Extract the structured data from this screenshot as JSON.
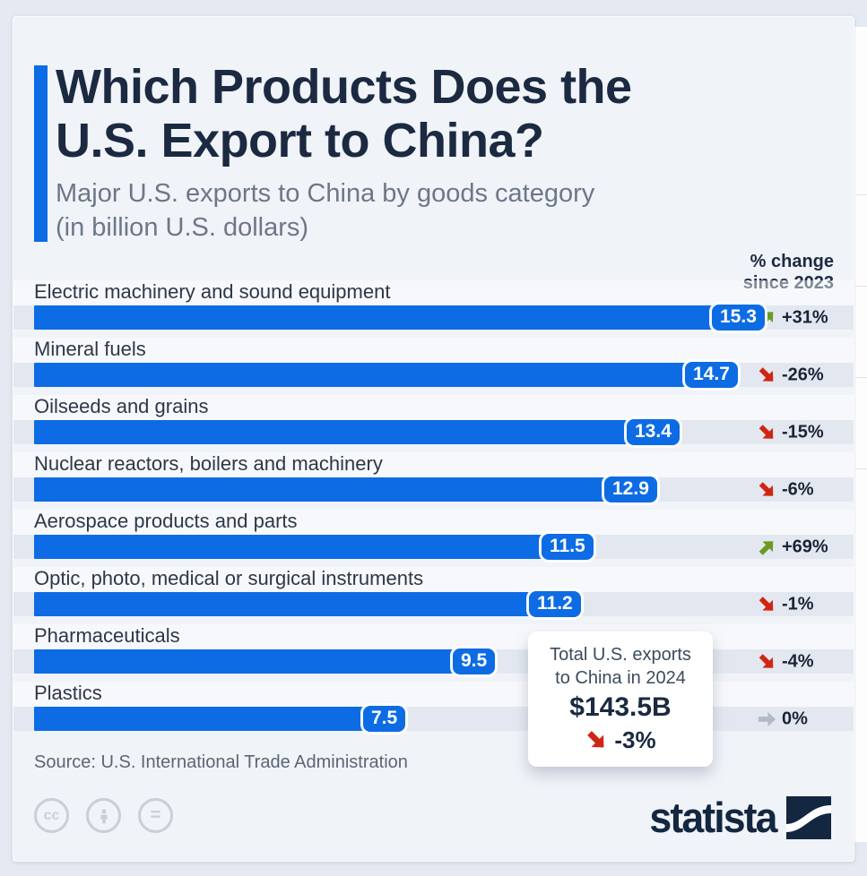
{
  "header": {
    "title_line1": "Which Products Does the",
    "title_line2": "U.S. Export to China?",
    "subtitle_line1": "Major U.S. exports to China by goods category",
    "subtitle_line2": "(in billion U.S. dollars)",
    "change_header_line1": "% change",
    "change_header_line2": "since 2023"
  },
  "chart_data": {
    "type": "bar",
    "orientation": "horizontal",
    "title": "Which Products Does the U.S. Export to China?",
    "subtitle": "Major U.S. exports to China by goods category (in billion U.S. dollars)",
    "unit": "billion U.S. dollars",
    "xlim": [
      0,
      15.3
    ],
    "categories": [
      "Electric machinery and sound equipment",
      "Mineral fuels",
      "Oilseeds and grains",
      "Nuclear reactors, boilers and machinery",
      "Aerospace products and parts",
      "Optic, photo, medical or surgical instruments",
      "Pharmaceuticals",
      "Plastics"
    ],
    "values": [
      15.3,
      14.7,
      13.4,
      12.9,
      11.5,
      11.2,
      9.5,
      7.5
    ],
    "rows": [
      {
        "label": "Electric machinery and sound equipment",
        "value": 15.3,
        "value_label": "15.3",
        "change": "+31%",
        "direction": "up"
      },
      {
        "label": "Mineral fuels",
        "value": 14.7,
        "value_label": "14.7",
        "change": "-26%",
        "direction": "down"
      },
      {
        "label": "Oilseeds and grains",
        "value": 13.4,
        "value_label": "13.4",
        "change": "-15%",
        "direction": "down"
      },
      {
        "label": "Nuclear reactors, boilers and machinery",
        "value": 12.9,
        "value_label": "12.9",
        "change": "-6%",
        "direction": "down"
      },
      {
        "label": "Aerospace products and parts",
        "value": 11.5,
        "value_label": "11.5",
        "change": "+69%",
        "direction": "up"
      },
      {
        "label": "Optic, photo, medical or surgical instruments",
        "value": 11.2,
        "value_label": "11.2",
        "change": "-1%",
        "direction": "down"
      },
      {
        "label": "Pharmaceuticals",
        "value": 9.5,
        "value_label": "9.5",
        "change": "-4%",
        "direction": "down"
      },
      {
        "label": "Plastics",
        "value": 7.5,
        "value_label": "7.5",
        "change": "0%",
        "direction": "flat"
      }
    ]
  },
  "callout": {
    "line1": "Total U.S. exports",
    "line2": "to China in 2024",
    "total": "$143.5B",
    "change": "-3%",
    "direction": "down"
  },
  "source": "Source: U.S. International Trade Administration",
  "footer": {
    "license_cc": "cc",
    "license_nd": "=",
    "brand": "statista"
  },
  "colors": {
    "bar_blue": "#0d6ce4",
    "navy": "#1b2a41",
    "increase_green": "#6b9b21",
    "decrease_red": "#cf2613",
    "flat_gray": "#b3bac3"
  }
}
